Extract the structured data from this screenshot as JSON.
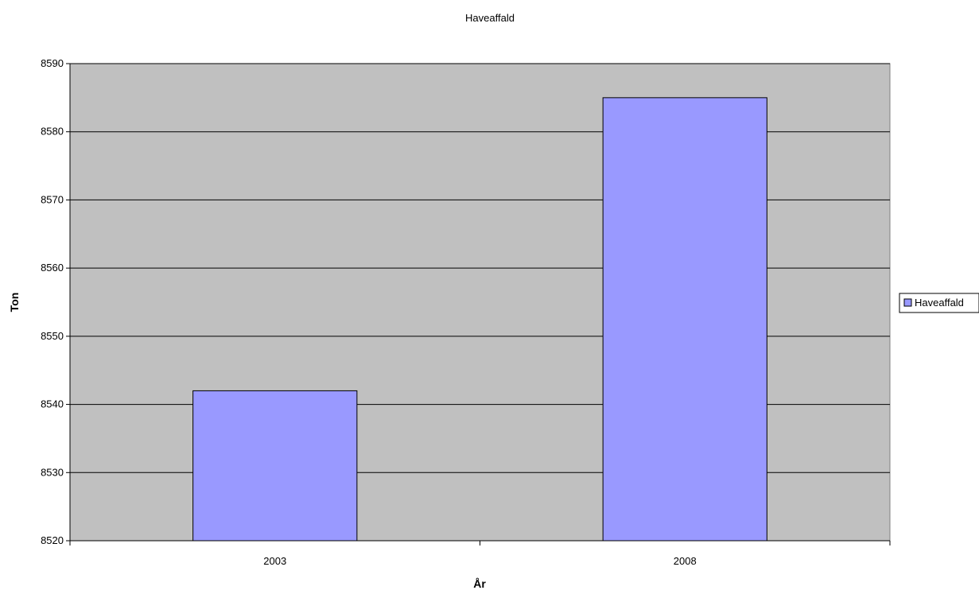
{
  "chart_data": {
    "type": "bar",
    "title": "Haveaffald",
    "xlabel": "År",
    "ylabel": "Ton",
    "categories": [
      "2003",
      "2008"
    ],
    "series": [
      {
        "name": "Haveaffald",
        "values": [
          8542,
          8585
        ],
        "color": "#9999ff"
      }
    ],
    "ylim": [
      8520,
      8590
    ],
    "yticks": [
      8520,
      8530,
      8540,
      8550,
      8560,
      8570,
      8580,
      8590
    ],
    "grid": true,
    "legend_position": "right",
    "colors": {
      "plot_background": "#c0c0c0",
      "gridline": "#000000",
      "bar_border": "#000000"
    }
  }
}
